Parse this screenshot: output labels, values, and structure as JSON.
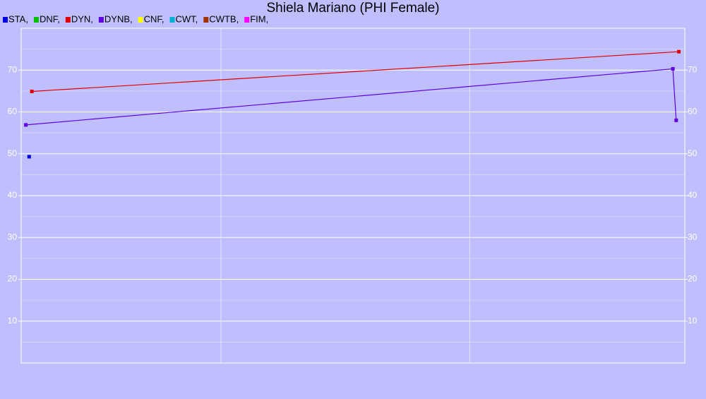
{
  "chart_data": {
    "type": "line",
    "title": "Shiela Mariano (PHI Female)",
    "series": [
      {
        "name": "STA,",
        "color": "#0000e0",
        "x": [
          1.2
        ],
        "values": [
          49.3
        ]
      },
      {
        "name": "DNF,",
        "color": "#00c000",
        "x": [],
        "values": []
      },
      {
        "name": "DYN,",
        "color": "#e00000",
        "x": [
          1.6,
          99.1
        ],
        "values": [
          64.9,
          74.4
        ]
      },
      {
        "name": "DYNB,",
        "color": "#6000e0",
        "x": [
          0.7,
          98.2,
          98.7
        ],
        "values": [
          56.9,
          70.3,
          58.0
        ]
      },
      {
        "name": "CNF,",
        "color": "#ffff00",
        "x": [],
        "values": []
      },
      {
        "name": "CWT,",
        "color": "#00b0d0",
        "x": [],
        "values": []
      },
      {
        "name": "CWTB,",
        "color": "#a03000",
        "x": [],
        "values": []
      },
      {
        "name": "FIM,",
        "color": "#ff00ff",
        "x": [],
        "values": []
      }
    ],
    "xlim": [
      0,
      100
    ],
    "xticks": [
      30.1,
      67.6
    ],
    "ylim": [
      0,
      80
    ],
    "yticks": [
      10,
      20,
      30,
      40,
      50,
      60,
      70
    ],
    "grid": true,
    "minor_grid": true,
    "legend": "top-left"
  }
}
